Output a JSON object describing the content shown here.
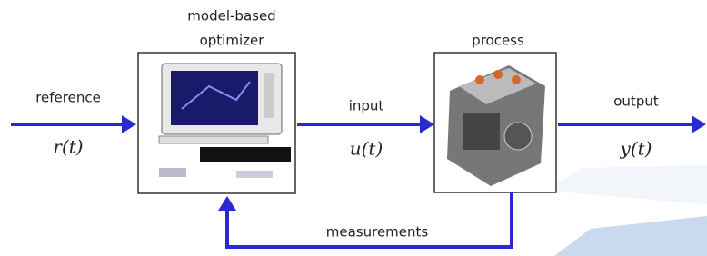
{
  "optimizer": {
    "label_lines": [
      "model-based",
      "optimizer"
    ]
  },
  "process": {
    "label": "process"
  },
  "reference": {
    "label": "reference",
    "signal": "r(t)"
  },
  "input": {
    "label": "input",
    "signal": "u(t)"
  },
  "output": {
    "label": "output",
    "signal": "y(t)"
  },
  "feedback": {
    "label": "measurements"
  }
}
